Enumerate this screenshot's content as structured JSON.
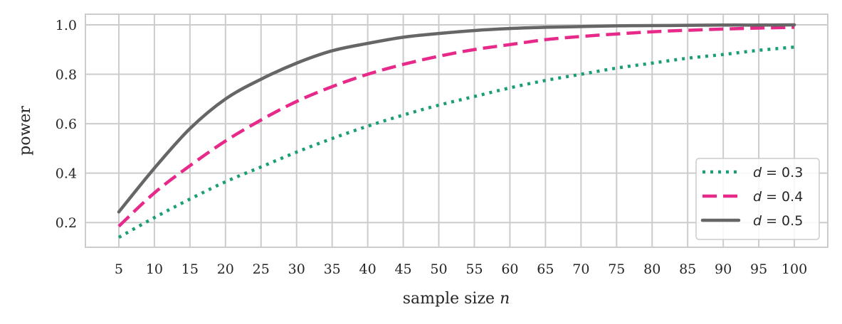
{
  "chart_data": {
    "type": "line",
    "title": "",
    "xlabel": "sample size",
    "xlabel_var": "n",
    "ylabel": "power",
    "xlim": [
      0.3,
      104.7
    ],
    "ylim": [
      0.1,
      1.043
    ],
    "grid": true,
    "legend_placement": "lower-right",
    "xticks": [
      5,
      10,
      15,
      20,
      25,
      30,
      35,
      40,
      45,
      50,
      55,
      60,
      65,
      70,
      75,
      80,
      85,
      90,
      95,
      100
    ],
    "xtick_labels": [
      "5",
      "10",
      "15",
      "20",
      "25",
      "30",
      "35",
      "40",
      "45",
      "50",
      "55",
      "60",
      "65",
      "70",
      "75",
      "80",
      "85",
      "90",
      "95",
      "100"
    ],
    "yticks": [
      0.2,
      0.4,
      0.6,
      0.8,
      1.0
    ],
    "ytick_labels": [
      "0.2",
      "0.4",
      "0.6",
      "0.8",
      "1.0"
    ],
    "x": [
      5,
      10,
      15,
      20,
      25,
      30,
      35,
      40,
      45,
      50,
      55,
      60,
      65,
      70,
      75,
      80,
      85,
      90,
      95,
      100
    ],
    "series": [
      {
        "name": "d = 0.3",
        "label_var": "d",
        "label_value": "0.3",
        "color": "#1b9e77",
        "style": "dotted",
        "values": [
          0.14,
          0.22,
          0.295,
          0.365,
          0.425,
          0.485,
          0.54,
          0.59,
          0.635,
          0.675,
          0.71,
          0.745,
          0.775,
          0.8,
          0.825,
          0.845,
          0.865,
          0.88,
          0.897,
          0.91
        ]
      },
      {
        "name": "d = 0.4",
        "label_var": "d",
        "label_value": "0.4",
        "color": "#e7298a",
        "style": "dashed",
        "values": [
          0.185,
          0.32,
          0.43,
          0.53,
          0.615,
          0.69,
          0.75,
          0.8,
          0.84,
          0.873,
          0.9,
          0.92,
          0.94,
          0.953,
          0.963,
          0.972,
          0.978,
          0.983,
          0.987,
          0.99
        ]
      },
      {
        "name": "d = 0.5",
        "label_var": "d",
        "label_value": "0.5",
        "color": "#666666",
        "style": "solid",
        "values": [
          0.243,
          0.42,
          0.58,
          0.7,
          0.78,
          0.845,
          0.895,
          0.925,
          0.95,
          0.965,
          0.977,
          0.985,
          0.99,
          0.993,
          0.996,
          0.997,
          0.998,
          0.999,
          0.999,
          1.0
        ]
      }
    ]
  }
}
